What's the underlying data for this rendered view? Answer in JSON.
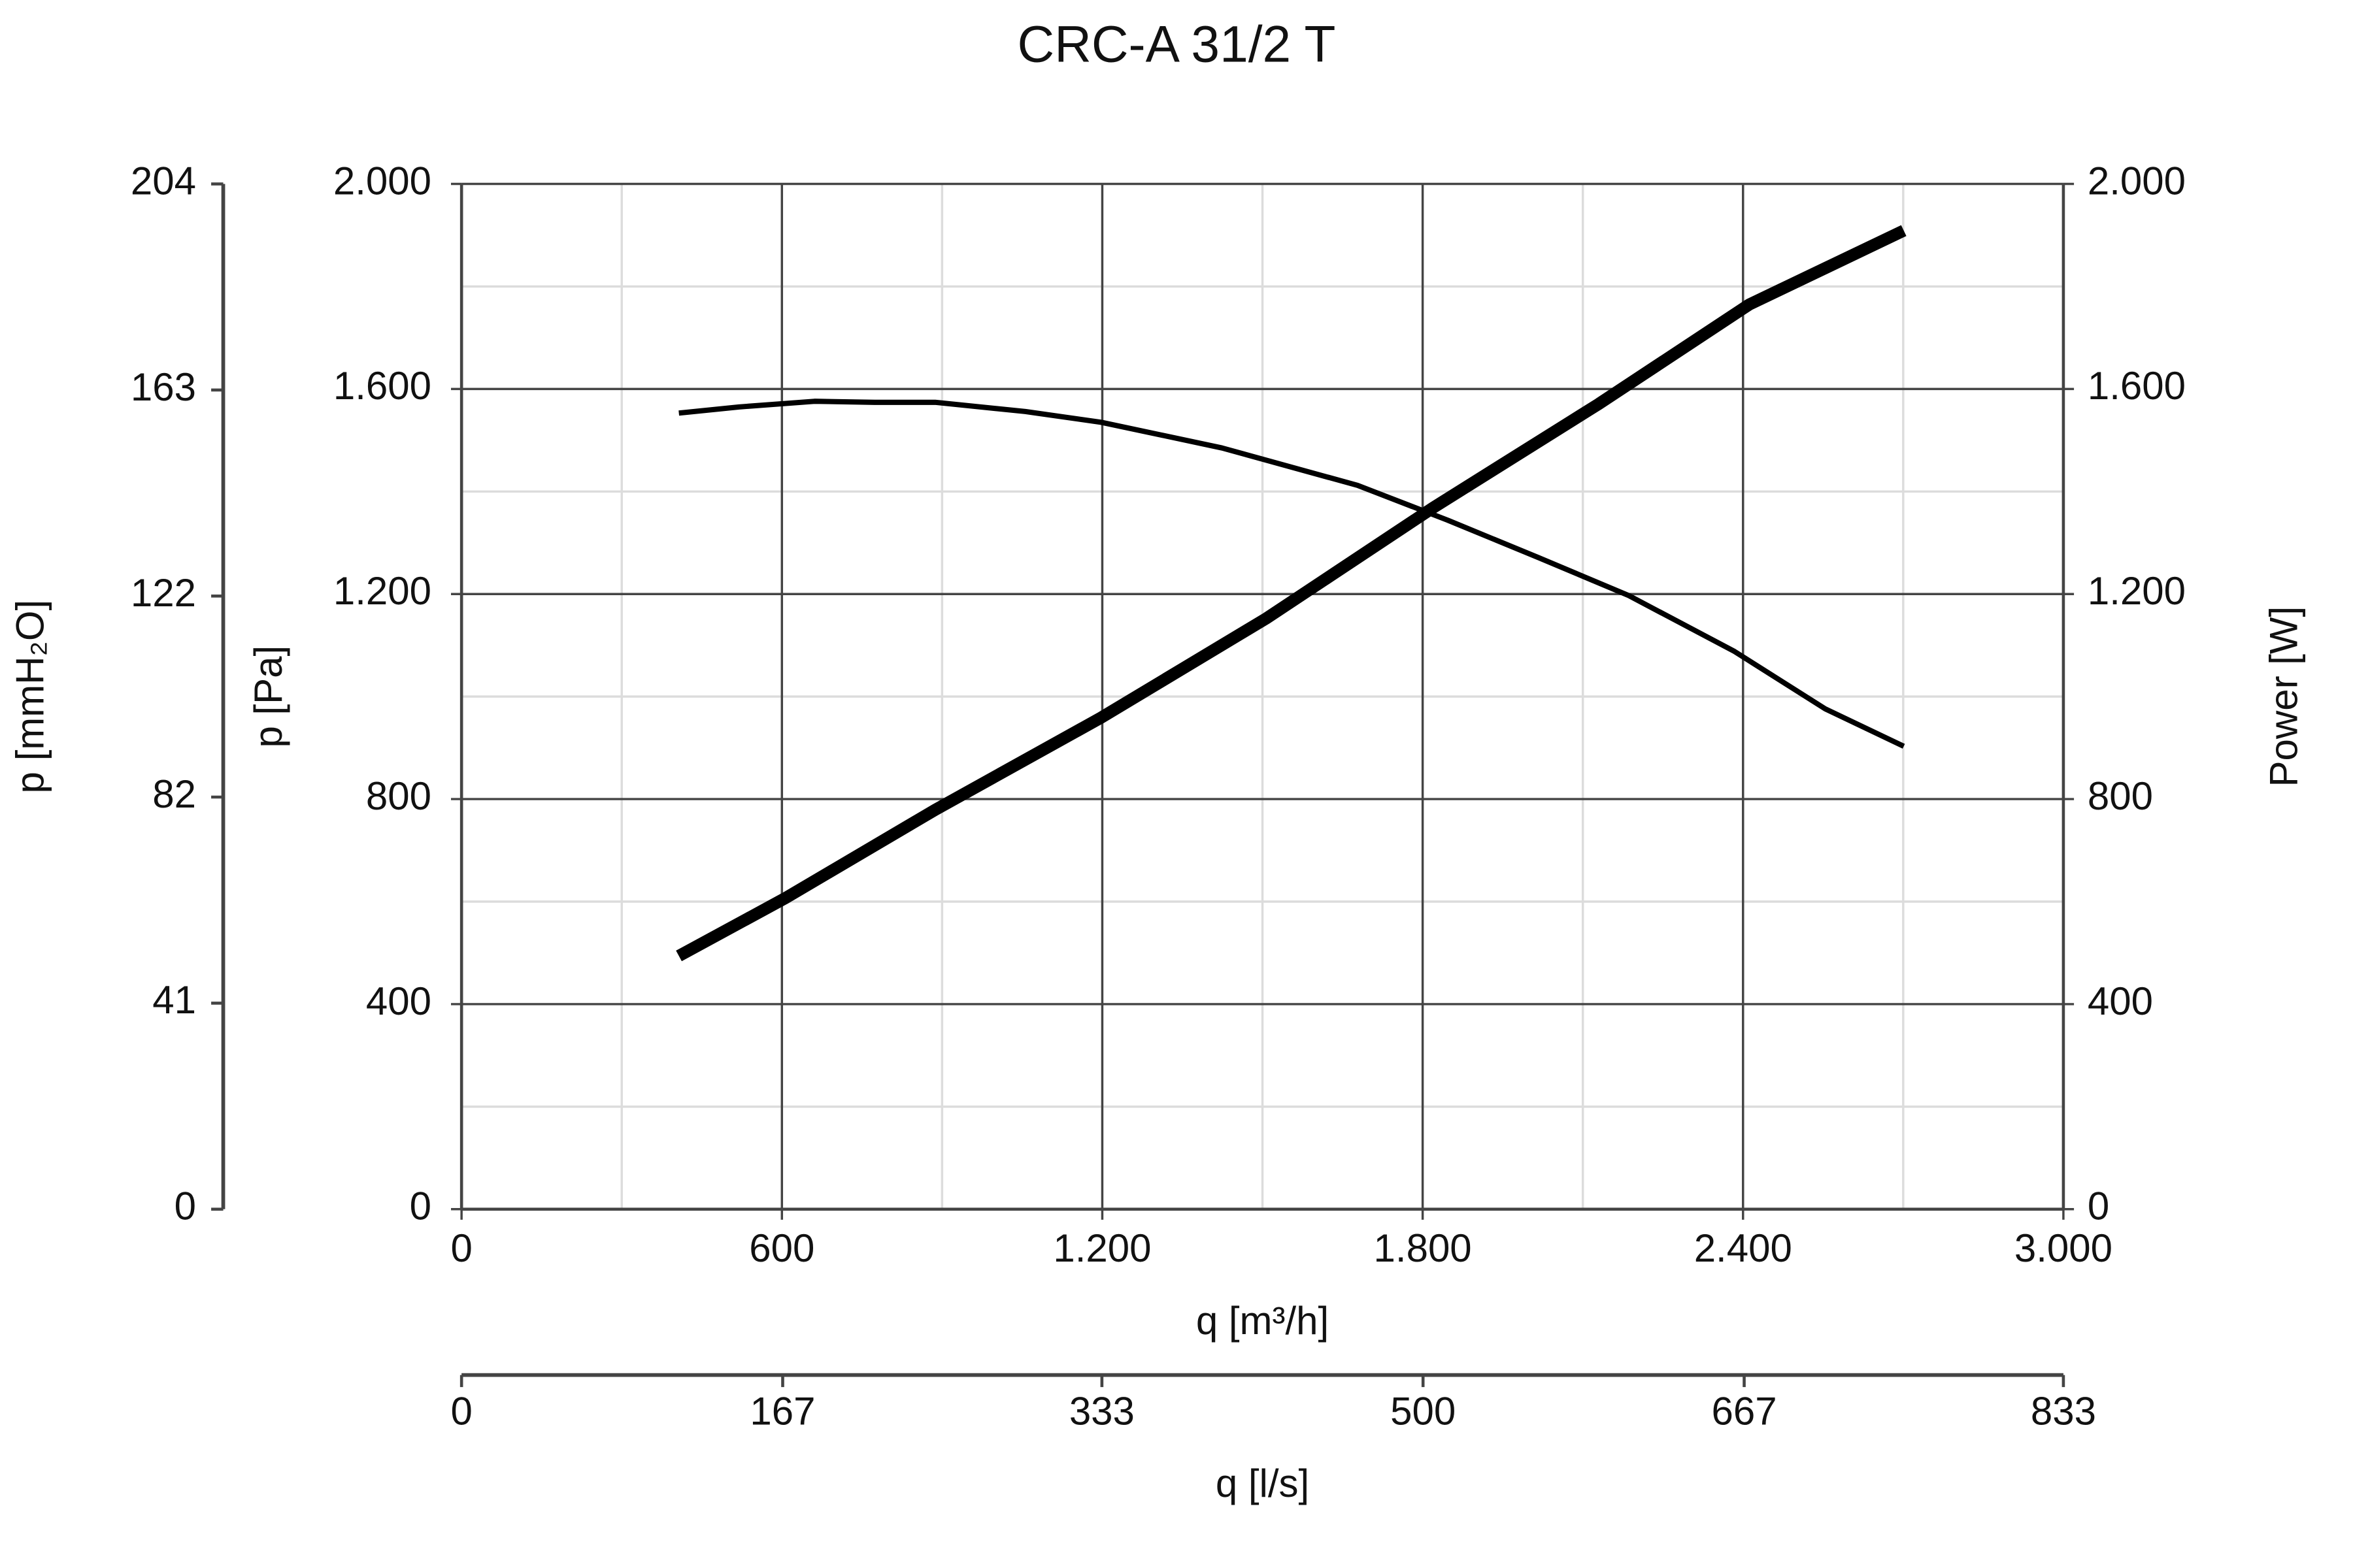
{
  "chart_data": {
    "type": "line",
    "title": "CRC-A 31/2 T",
    "x_label": "q [m³/h]",
    "y_label": "p [Pa]",
    "y2_label": "Power [W]",
    "xlim": [
      0,
      3000
    ],
    "xticks": [
      0,
      600,
      {
        "value": 1200,
        "label": "1.200"
      },
      {
        "value": 1800,
        "label": "1.800"
      },
      {
        "value": 2400,
        "label": "2.400"
      },
      {
        "value": 3000,
        "label": "3.000"
      }
    ],
    "xticks_minor": [
      300,
      900,
      1500,
      2100,
      2700
    ],
    "ylim": [
      0,
      2000
    ],
    "yticks": [
      0,
      400,
      800,
      {
        "value": 1200,
        "label": "1.200"
      },
      {
        "value": 1600,
        "label": "1.600"
      },
      {
        "value": 2000,
        "label": "2.000"
      }
    ],
    "yticks_minor": [
      200,
      600,
      1000,
      1400,
      1800
    ],
    "y2lim": [
      0,
      2000
    ],
    "y2ticks": [
      0,
      400,
      800,
      {
        "value": 1200,
        "label": "1.200"
      },
      {
        "value": 1600,
        "label": "1.600"
      },
      {
        "value": 2000,
        "label": "2.000"
      }
    ],
    "grid": true,
    "y_mmh2o_label": "p [mmH₂O]",
    "y_mmh2o_lim": [
      0,
      204
    ],
    "y_mmh2o_ticks": [
      0,
      41,
      82,
      122,
      163,
      204
    ],
    "x_ls_label": "q [l/s]",
    "x_ls_lim": [
      0,
      833
    ],
    "x_ls_ticks": [
      0,
      167,
      333,
      500,
      667,
      833
    ],
    "series": [
      {
        "color": "#000000",
        "x": [
          407,
          520,
          661,
          774,
          887,
          1056,
          1198,
          1424,
          1678,
          1847,
          2017,
          2186,
          2384,
          2554,
          2701
        ],
        "values": [
          1553,
          1565,
          1576,
          1574,
          1574,
          1556,
          1535,
          1485,
          1412,
          1344,
          1271,
          1197,
          1088,
          976,
          903
        ]
      },
      {
        "color": "#000000",
        "axis": "y2",
        "x": [
          407,
          605,
          887,
          1198,
          1508,
          1819,
          2130,
          2412,
          2701
        ],
        "values": [
          494,
          606,
          779,
          959,
          1153,
          1368,
          1571,
          1765,
          1909
        ]
      }
    ]
  }
}
